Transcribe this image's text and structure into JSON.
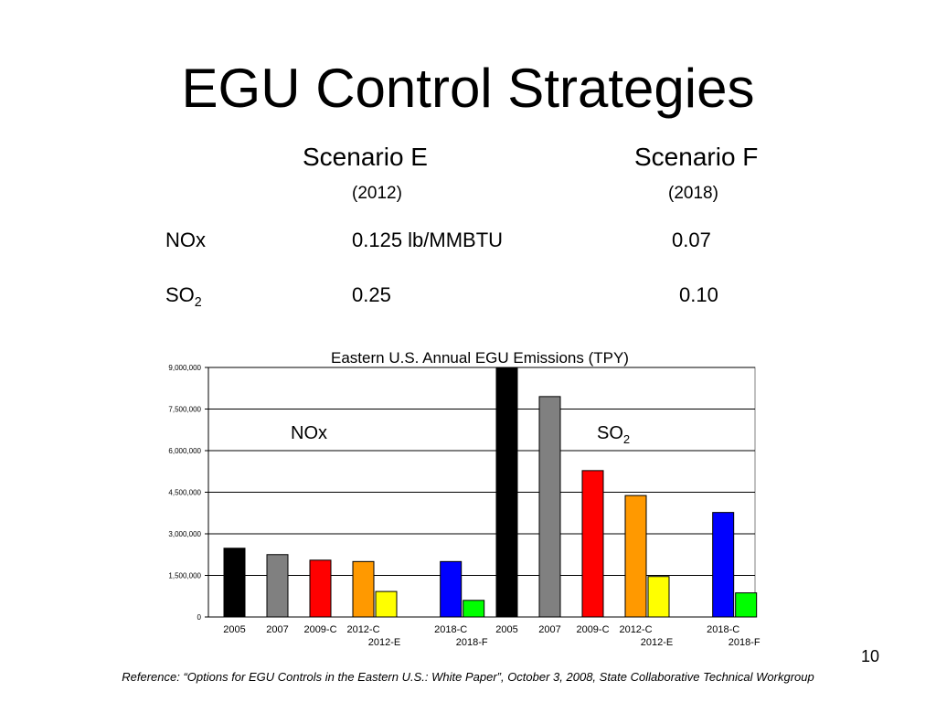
{
  "slide": {
    "title": "EGU Control Strategies",
    "scenario_e": {
      "label": "Scenario E",
      "year": "(2012)"
    },
    "scenario_f": {
      "label": "Scenario F",
      "year": "(2018)"
    },
    "rows": [
      {
        "pollutant": "NOx",
        "sub": "",
        "scenario_e_value": "0.125 lb/MMBTU",
        "scenario_f_value": "0.07"
      },
      {
        "pollutant": "SO",
        "sub": "2",
        "scenario_e_value": "0.25",
        "scenario_f_value": "0.10"
      }
    ],
    "page_number": "10",
    "footnote": "Reference: “Options for EGU Controls in the Eastern U.S.: White Paper”, October 3, 2008, State Collaborative Technical Workgroup"
  },
  "chart_data": {
    "type": "bar",
    "title": "Eastern U.S. Annual EGU Emissions (TPY)",
    "ylim": [
      0,
      9000000
    ],
    "y_ticks": [
      "0",
      "1,500,000",
      "3,000,000",
      "4,500,000",
      "6,000,000",
      "7,500,000",
      "9,000,000"
    ],
    "y_tick_values": [
      0,
      1500000,
      3000000,
      4500000,
      6000000,
      7500000,
      9000000
    ],
    "grid": true,
    "groups": [
      {
        "label": "NOx",
        "label_sub": "",
        "bars": [
          {
            "category": "2005",
            "value": 2480000,
            "color": "#000000"
          },
          {
            "category": "2007",
            "value": 2250000,
            "color": "#808080"
          },
          {
            "category": "2009-C",
            "value": 2050000,
            "color": "#ff0000"
          },
          {
            "category": "2012-C",
            "value": 2000000,
            "color": "#ff9900"
          },
          {
            "category": "2012-E",
            "value": 920000,
            "color": "#ffff00"
          },
          {
            "category": "2018-C",
            "value": 2000000,
            "color": "#0000ff"
          },
          {
            "category": "2018-F",
            "value": 600000,
            "color": "#00ff00"
          }
        ]
      },
      {
        "label": "SO",
        "label_sub": "2",
        "bars": [
          {
            "category": "2005",
            "value": 9000000,
            "color": "#000000"
          },
          {
            "category": "2007",
            "value": 7950000,
            "color": "#808080"
          },
          {
            "category": "2009-C",
            "value": 5280000,
            "color": "#ff0000"
          },
          {
            "category": "2012-C",
            "value": 4380000,
            "color": "#ff9900"
          },
          {
            "category": "2012-E",
            "value": 1460000,
            "color": "#ffff00"
          },
          {
            "category": "2018-C",
            "value": 3770000,
            "color": "#0000ff"
          },
          {
            "category": "2018-F",
            "value": 870000,
            "color": "#00ff00"
          }
        ]
      }
    ]
  }
}
